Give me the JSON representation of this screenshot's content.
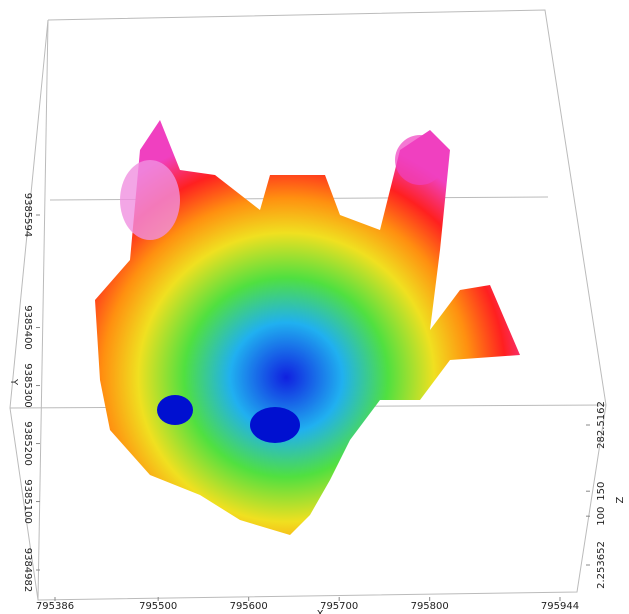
{
  "chart_data": {
    "type": "surface3d",
    "x_label": "X",
    "y_label": "Y",
    "z_label": "Z",
    "xlim": [
      795386,
      795944
    ],
    "xticks": [
      795386,
      795500,
      795600,
      795700,
      795800,
      795944
    ],
    "ylim": [
      9384982,
      9385594
    ],
    "yticks": [
      9384982,
      9385100,
      9385200,
      9385300,
      9385400,
      9385594
    ],
    "zlim": [
      2.253652,
      282.5162
    ],
    "zticks": [
      2.253652,
      100,
      150,
      282.5162
    ]
  }
}
